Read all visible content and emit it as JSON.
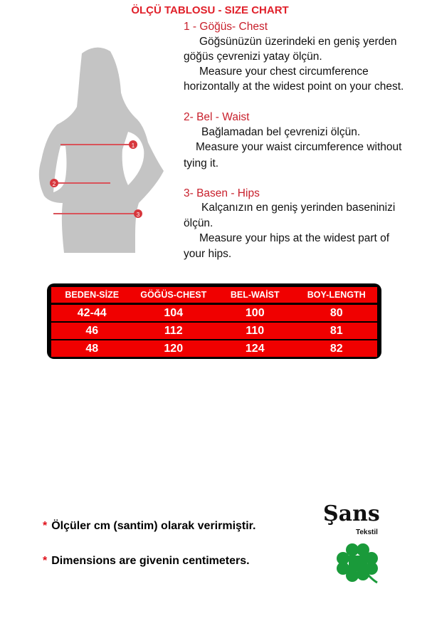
{
  "title": "ÖLÇÜ TABLOSU - SIZE CHART",
  "sections": [
    {
      "heading": "1 - Göğüs- Chest",
      "lines": [
        "Göğsünüzün üzerindeki en geniş yerden",
        "göğüs çevrenizi yatay ölçün.",
        "Measure your chest circumference",
        "horizontally at the widest point on your chest."
      ]
    },
    {
      "heading": "2- Bel - Waist",
      "lines": [
        "Bağlamadan bel çevrenizi ölçün.",
        "Measure your waist circumference without",
        "tying it."
      ]
    },
    {
      "heading": "3- Basen - Hips",
      "lines": [
        "Kalçanızın en geniş yerinden baseninizi",
        "ölçün.",
        "Measure your hips at the widest part of",
        "your hips."
      ]
    }
  ],
  "figure": {
    "markers": [
      "1",
      "2",
      "3"
    ]
  },
  "table": {
    "headers": [
      "BEDEN-SİZE",
      "GÖĞÜS-CHEST",
      "BEL-WAİST",
      "BOY-LENGTH"
    ],
    "rows": [
      [
        "42-44",
        "104",
        "100",
        "80"
      ],
      [
        "46",
        "112",
        "110",
        "81"
      ],
      [
        "48",
        "120",
        "124",
        "82"
      ]
    ]
  },
  "notes": [
    {
      "asterisk": "*",
      "text": "Ölçüler  cm (santim) olarak verirmiştir."
    },
    {
      "asterisk": "*",
      "text": "Dimensions are givenin centimeters."
    }
  ],
  "logo": {
    "name": "Şans",
    "sub": "Tekstil",
    "icon": "clover-icon",
    "color": "#1a9a3a"
  },
  "colors": {
    "accent": "#f00000",
    "heading": "#c8202c"
  }
}
